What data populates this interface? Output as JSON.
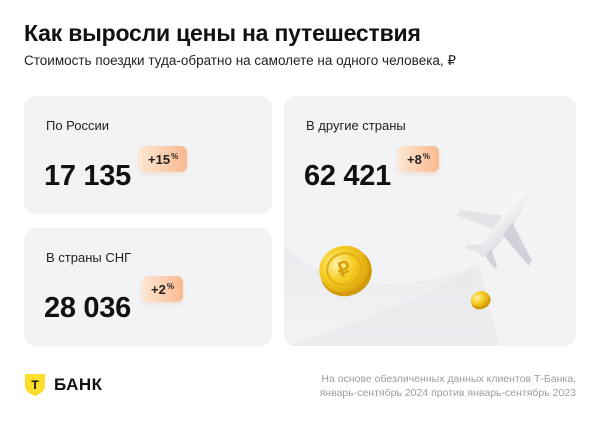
{
  "header": {
    "title": "Как выросли цены на путешествия",
    "subtitle": "Стоимость поездки туда-обратно на самолете на одного человека, ₽"
  },
  "cards": [
    {
      "label": "По России",
      "value": "17 135",
      "change": "+15",
      "unit": "%"
    },
    {
      "label": "В страны СНГ",
      "value": "28 036",
      "change": "+2",
      "unit": "%"
    },
    {
      "label": "В другие страны",
      "value": "62 421",
      "change": "+8",
      "unit": "%"
    }
  ],
  "illustration": {
    "coin_symbol": "₽",
    "icons": [
      "airplane-icon",
      "ruble-coin-icon",
      "small-coin-icon"
    ]
  },
  "footer": {
    "brand": "БАНК",
    "brand_letter": "Т",
    "note_line1": "На основе обезличенных данных клиентов Т-Банка,",
    "note_line2": "январь-сентябрь 2024 против январь-сентябрь 2023"
  },
  "colors": {
    "card_bg": "#f2f3f5",
    "badge_from": "#fce7d3",
    "badge_to": "#f8b98f",
    "brand_yellow": "#ffdd2d",
    "coin_gold": "#f5c518"
  }
}
